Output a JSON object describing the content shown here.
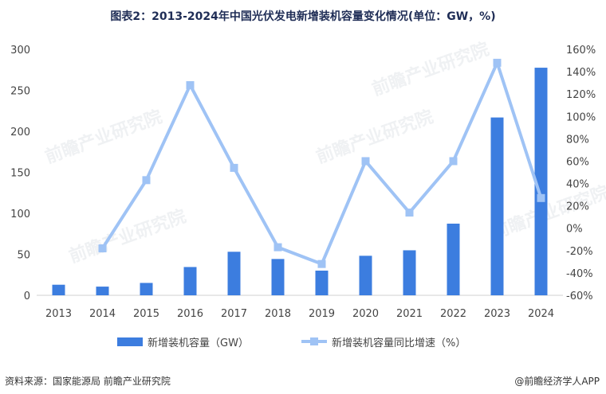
{
  "title": "图表2：2013-2024年中国光伏发电新增装机容量变化情况(单位：GW，%)",
  "source": "资料来源：国家能源局 前瞻产业研究院",
  "brand": "@前瞻经济学人APP",
  "watermark": "前瞻产业研究院",
  "colors": {
    "bar": "#3c7ddf",
    "line": "#9fc3f5",
    "marker": "#9fc3f5",
    "title": "#1f2d56"
  },
  "chart_data": {
    "type": "bar",
    "categories": [
      "2013",
      "2014",
      "2015",
      "2016",
      "2017",
      "2018",
      "2019",
      "2020",
      "2021",
      "2022",
      "2023",
      "2024"
    ],
    "series": [
      {
        "name": "新增装机容量（GW）",
        "type": "bar",
        "axis": "left",
        "values": [
          12.9,
          10.6,
          15.1,
          34.5,
          53.1,
          44.3,
          30.1,
          48.2,
          54.9,
          87.4,
          216.9,
          277.6
        ]
      },
      {
        "name": "新增装机容量同比增速（%）",
        "type": "line",
        "axis": "right",
        "values": [
          null,
          -18,
          43,
          128,
          54,
          -17,
          -32,
          60,
          14,
          60,
          148,
          27
        ]
      }
    ],
    "y_left": {
      "min": 0,
      "max": 300,
      "ticks": [
        0,
        50,
        100,
        150,
        200,
        250,
        300
      ]
    },
    "y_right": {
      "min": -60,
      "max": 160,
      "ticks": [
        "-60%",
        "-40%",
        "-20%",
        "0%",
        "20%",
        "40%",
        "60%",
        "80%",
        "100%",
        "120%",
        "140%",
        "160%"
      ]
    },
    "grid": false,
    "legend_position": "bottom"
  }
}
